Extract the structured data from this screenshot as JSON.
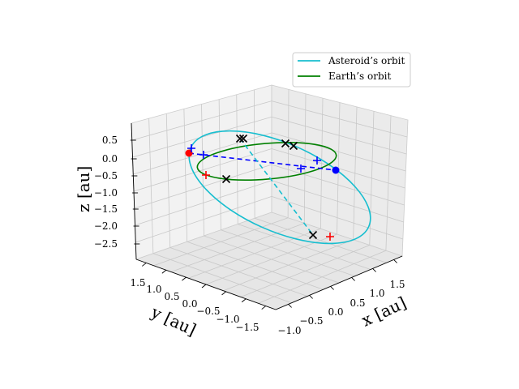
{
  "chart_data": {
    "type": "line",
    "projection": "3d",
    "axes": {
      "x": {
        "label": "x [au]",
        "ticks": [
          -1.0,
          -0.5,
          0.0,
          0.5,
          1.0,
          1.5
        ],
        "tick_labels": [
          "−1.0",
          "−0.5",
          "0.0",
          "0.5",
          "1.0",
          "1.5"
        ]
      },
      "y": {
        "label": "y [au]",
        "ticks": [
          1.5,
          1.0,
          0.5,
          0.0,
          -0.5,
          -1.0,
          -1.5
        ],
        "tick_labels": [
          "1.5",
          "1.0",
          "0.5",
          "0.0",
          "−0.5",
          "−1.0",
          "−1.5"
        ]
      },
      "z": {
        "label": "z [au]",
        "ticks": [
          0.5,
          0.0,
          -0.5,
          -1.0,
          -1.5,
          -2.0,
          -2.5
        ],
        "tick_labels": [
          "0.5",
          "0.0",
          "−0.5",
          "−1.0",
          "−1.5",
          "−2.0",
          "−2.5"
        ]
      }
    },
    "grid": true,
    "legend_position": "top-right",
    "series": [
      {
        "name": "Asteroid’s orbit",
        "color": "#17becf",
        "style": "solid"
      },
      {
        "name": "Earth’s orbit",
        "color": "#008000",
        "style": "solid"
      }
    ],
    "markers": {
      "points": [
        {
          "color": "#ff0000",
          "shape": "circle"
        },
        {
          "color": "#0000ff",
          "shape": "circle"
        }
      ],
      "crosses_red": {
        "color": "#ff0000",
        "shape": "plus",
        "count": 2
      },
      "crosses_blue": {
        "color": "#0000ff",
        "shape": "plus",
        "count": 4
      },
      "x_marks": {
        "color": "#000000",
        "shape": "x",
        "count": 7
      }
    },
    "connectors": [
      {
        "color": "#0000ff",
        "style": "dashed"
      },
      {
        "color": "#17becf",
        "style": "dashed"
      }
    ]
  }
}
